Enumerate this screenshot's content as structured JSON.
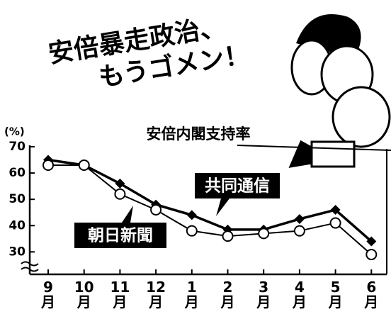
{
  "headline": [
    "安倍暴走政治、",
    "もうゴメン！"
  ],
  "chart_data": {
    "type": "line",
    "title": "安倍内閣支持率",
    "y_unit": "(%)",
    "categories": [
      "9月",
      "10月",
      "11月",
      "12月",
      "1月",
      "2月",
      "3月",
      "4月",
      "5月",
      "6月"
    ],
    "series": [
      {
        "name": "共同通信",
        "color": "#000000",
        "values": [
          65,
          63,
          56,
          48,
          44,
          38.5,
          38.5,
          42.5,
          46,
          34
        ]
      },
      {
        "name": "朝日新聞",
        "color": "#000000",
        "values": [
          63,
          63,
          52,
          46,
          38,
          36,
          37,
          38,
          41,
          29
        ]
      }
    ],
    "ylim": [
      22,
      70
    ],
    "yticks": [
      30,
      40,
      50,
      60,
      70
    ],
    "grid": false
  }
}
